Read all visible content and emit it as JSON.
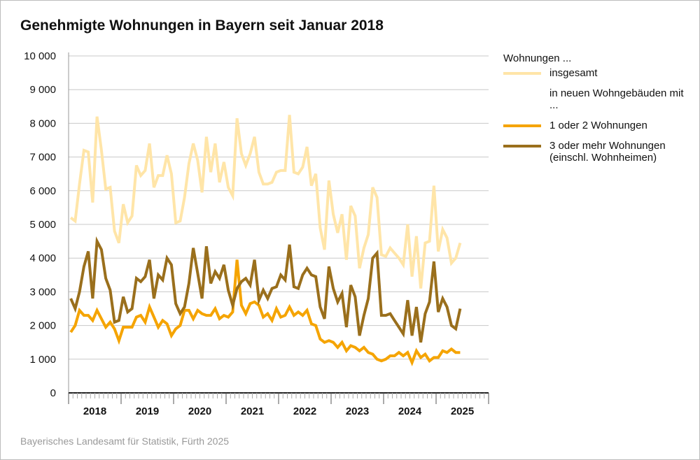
{
  "title": "Genehmigte Wohnungen in Bayern seit Januar 2018",
  "source": "Bayerisches Landesamt für Statistik, Fürth 2025",
  "legend": {
    "heading": "Wohnungen ...",
    "items": [
      {
        "label": "insgesamt",
        "color": "#ffe5a8"
      },
      {
        "label": "in neuen Wohngebäuden mit ..."
      },
      {
        "label": "1 oder 2 Wohnungen",
        "color": "#f5a400"
      },
      {
        "label": "3 oder mehr Wohnungen (einschl. Wohnheimen)",
        "color": "#9a6f1c"
      }
    ]
  },
  "chart_data": {
    "type": "line",
    "title": "Genehmigte Wohnungen in Bayern seit Januar 2018",
    "xlabel": "",
    "ylabel": "",
    "ylim": [
      0,
      10000
    ],
    "yticks": [
      0,
      1000,
      2000,
      3000,
      4000,
      5000,
      6000,
      7000,
      8000,
      9000,
      10000
    ],
    "ytick_labels": [
      "0",
      "1 000",
      "2 000",
      "3 000",
      "4 000",
      "5 000",
      "6 000",
      "7 000",
      "8 000",
      "9 000",
      "10 000"
    ],
    "x_start": "2018-01",
    "x_months_total": 96,
    "year_labels": [
      "2018",
      "2019",
      "2020",
      "2021",
      "2022",
      "2023",
      "2024",
      "2025"
    ],
    "grid": true,
    "legend_position": "right",
    "series": [
      {
        "name": "insgesamt",
        "color": "#ffe5a8",
        "values": [
          5200,
          5100,
          6200,
          7200,
          7150,
          5650,
          8200,
          7200,
          6050,
          6100,
          4800,
          4450,
          5600,
          5050,
          5250,
          6750,
          6450,
          6600,
          7400,
          6100,
          6450,
          6450,
          7050,
          6500,
          5050,
          5100,
          5800,
          6800,
          7400,
          6900,
          5950,
          7600,
          6550,
          7400,
          6250,
          6850,
          6100,
          5850,
          8150,
          7100,
          6750,
          7100,
          7600,
          6550,
          6200,
          6200,
          6250,
          6550,
          6600,
          6600,
          8250,
          6550,
          6500,
          6700,
          7300,
          6150,
          6500,
          4900,
          4250,
          6300,
          5300,
          4750,
          5300,
          3950,
          5550,
          5250,
          3700,
          4300,
          4700,
          6100,
          5800,
          4100,
          4050,
          4300,
          4150,
          4000,
          3800,
          5000,
          3450,
          4650,
          3100,
          4450,
          4500,
          6150,
          4200,
          4850,
          4600,
          3850,
          4000,
          4450
        ]
      },
      {
        "name": "1 oder 2 Wohnungen",
        "color": "#f5a400",
        "values": [
          1800,
          2000,
          2450,
          2300,
          2300,
          2150,
          2450,
          2200,
          1950,
          2100,
          1900,
          1550,
          1950,
          1950,
          1950,
          2250,
          2300,
          2100,
          2550,
          2250,
          1950,
          2150,
          2050,
          1700,
          1900,
          2000,
          2450,
          2450,
          2200,
          2450,
          2350,
          2300,
          2300,
          2500,
          2200,
          2300,
          2250,
          2400,
          3950,
          2600,
          2350,
          2650,
          2700,
          2600,
          2250,
          2350,
          2150,
          2500,
          2250,
          2300,
          2550,
          2300,
          2400,
          2300,
          2450,
          2050,
          2000,
          1600,
          1500,
          1550,
          1500,
          1350,
          1500,
          1250,
          1400,
          1350,
          1250,
          1350,
          1200,
          1150,
          1000,
          950,
          1000,
          1100,
          1100,
          1200,
          1100,
          1200,
          900,
          1250,
          1050,
          1150,
          950,
          1050,
          1050,
          1250,
          1200,
          1300,
          1200,
          1200
        ]
      },
      {
        "name": "3 oder mehr Wohnungen (einschl. Wohnheimen)",
        "color": "#9a6f1c",
        "values": [
          2800,
          2500,
          3000,
          3750,
          4200,
          2800,
          4500,
          4250,
          3400,
          3050,
          2100,
          2150,
          2850,
          2400,
          2500,
          3400,
          3300,
          3450,
          3950,
          2800,
          3500,
          3350,
          4000,
          3800,
          2650,
          2350,
          2550,
          3250,
          4300,
          3550,
          2800,
          4350,
          3250,
          3600,
          3400,
          3800,
          3050,
          2600,
          3100,
          3300,
          3400,
          3200,
          3950,
          2750,
          3050,
          2800,
          3100,
          3150,
          3500,
          3350,
          4400,
          3150,
          3100,
          3500,
          3700,
          3500,
          3450,
          2550,
          2200,
          3750,
          3100,
          2700,
          2950,
          1950,
          3200,
          2850,
          1700,
          2300,
          2800,
          4000,
          4150,
          2300,
          2300,
          2350,
          2150,
          1950,
          1750,
          2750,
          1700,
          2550,
          1500,
          2350,
          2700,
          3900,
          2400,
          2800,
          2550,
          2000,
          1900,
          2500
        ]
      }
    ]
  }
}
